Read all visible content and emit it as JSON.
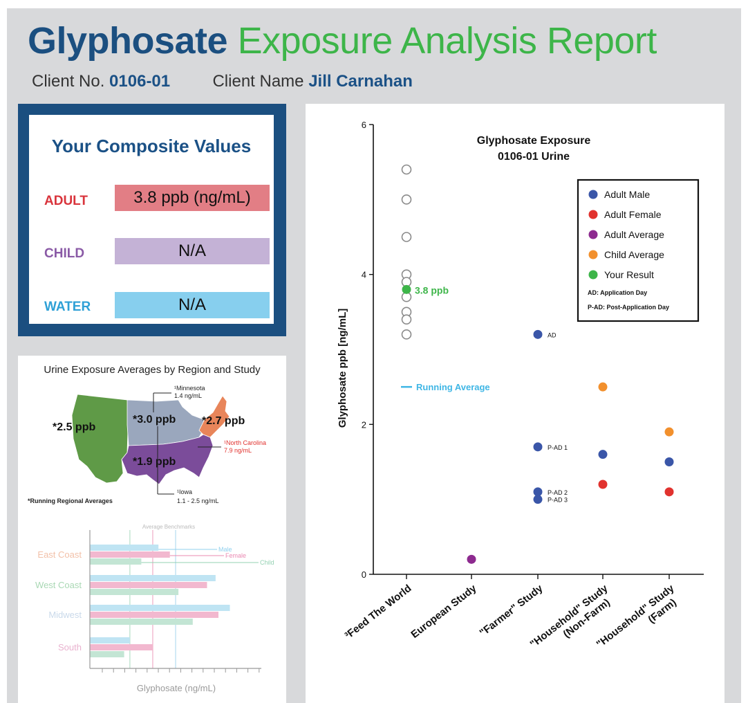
{
  "header": {
    "title_word1": "Glyphosate",
    "title_rest": "Exposure Analysis Report",
    "client_no_label": "Client No.",
    "client_no": "0106-01",
    "client_name_label": "Client Name",
    "client_name": "Jill Carnahan"
  },
  "composite": {
    "title": "Your Composite Values",
    "rows": [
      {
        "label": "ADULT",
        "value": "3.8 ppb (ng/mL)",
        "label_color": "#d9343c",
        "box_color": "#e27e85"
      },
      {
        "label": "CHILD",
        "value": "N/A",
        "label_color": "#8a5aa6",
        "box_color": "#c4b2d6"
      },
      {
        "label": "WATER",
        "value": "N/A",
        "label_color": "#2ea0d6",
        "box_color": "#87cfee"
      }
    ]
  },
  "map": {
    "title": "Urine Exposure Averages by Region and Study",
    "region_labels": [
      "*2.5 ppb",
      "*3.0 ppb",
      "*2.7 ppb",
      "*1.9 ppb"
    ],
    "callouts": {
      "minnesota_name": "¹Minnesota",
      "minnesota_value": "1.4 ng/mL",
      "north_carolina_name": "¹North Carolina",
      "north_carolina_value": "7.9 ng/mL",
      "iowa_name": "¹Iowa",
      "iowa_value": "1.1 - 2.5 ng/mL"
    },
    "footnote": "*Running Regional Averages",
    "region_colors": {
      "west": "#5f9a47",
      "central": "#9aa7bd",
      "northeast": "#e8855a",
      "south": "#7b4c9a"
    }
  },
  "bar_chart": {
    "chart_data": {
      "type": "bar",
      "orientation": "horizontal",
      "categories": [
        "East Coast",
        "West Coast",
        "Midwest",
        "South"
      ],
      "series": [
        {
          "name": "Male",
          "values": [
            2.4,
            4.4,
            4.9,
            1.4
          ],
          "color": "#bfe4f3"
        },
        {
          "name": "Female",
          "values": [
            2.8,
            4.1,
            4.5,
            2.2
          ],
          "color": "#f2b8cf"
        },
        {
          "name": "Child",
          "values": [
            1.8,
            3.1,
            3.6,
            1.2
          ],
          "color": "#c3e5d4"
        }
      ],
      "xlabel": "Glyphosate (ng/mL)",
      "benchmark_label": "Average Benchmarks",
      "benchmarks": [
        1.4,
        2.2,
        3.0
      ],
      "xlim": [
        0,
        6
      ],
      "category_colors": [
        "#f2c0a8",
        "#a9d8b4",
        "#c9d9ea",
        "#e9b2cf"
      ]
    }
  },
  "main_chart": {
    "chart_data": {
      "type": "scatter",
      "title_line1": "Glyphosate Exposure",
      "title_line2": "0106-01 Urine",
      "ylabel": "Glyphosate ppb [ng/mL]",
      "ylim": [
        0,
        6
      ],
      "yticks": [
        "0",
        "2",
        "4",
        "6"
      ],
      "categories": [
        "³Feed The World",
        "European Study",
        "\"Farmer\" Study",
        "\"Household\" Study (Non-Farm)",
        "\"Household\" Study (Farm)"
      ],
      "series": [
        {
          "name": "Adult Male",
          "color": "#3a56a8",
          "points": [
            {
              "cat": 2,
              "y": 3.2,
              "label": "AD"
            },
            {
              "cat": 2,
              "y": 1.7,
              "label": "P-AD 1"
            },
            {
              "cat": 2,
              "y": 1.1,
              "label": "P-AD 2"
            },
            {
              "cat": 2,
              "y": 1.0,
              "label": "P-AD 3"
            },
            {
              "cat": 3,
              "y": 1.6,
              "label": ""
            },
            {
              "cat": 4,
              "y": 1.5,
              "label": ""
            }
          ]
        },
        {
          "name": "Adult Female",
          "color": "#e1322e",
          "points": [
            {
              "cat": 3,
              "y": 1.2,
              "label": ""
            },
            {
              "cat": 4,
              "y": 1.1,
              "label": ""
            }
          ]
        },
        {
          "name": "Adult Average",
          "color": "#8d2a8f",
          "points": [
            {
              "cat": 1,
              "y": 0.2,
              "label": ""
            }
          ]
        },
        {
          "name": "Child Average",
          "color": "#f2902d",
          "points": [
            {
              "cat": 3,
              "y": 2.5,
              "label": ""
            },
            {
              "cat": 4,
              "y": 1.9,
              "label": ""
            }
          ]
        },
        {
          "name": "Your Result",
          "color": "#3db549",
          "points": [
            {
              "cat": 0,
              "y": 3.8,
              "label": "3.8 ppb"
            }
          ]
        }
      ],
      "feed_the_world": {
        "cat": 0,
        "values": [
          5.4,
          5.0,
          4.5,
          4.0,
          3.9,
          3.7,
          3.5,
          3.4,
          3.2
        ],
        "fill": "#ffffff",
        "stroke": "#8a8a8a"
      },
      "running_average": {
        "cat": 0,
        "y": 2.5,
        "label": "Running Average",
        "color": "#3fb6e5"
      },
      "legend_notes": [
        "AD: Application Day",
        "P-AD: Post-Application Day"
      ],
      "legend_position": "top-right"
    }
  }
}
